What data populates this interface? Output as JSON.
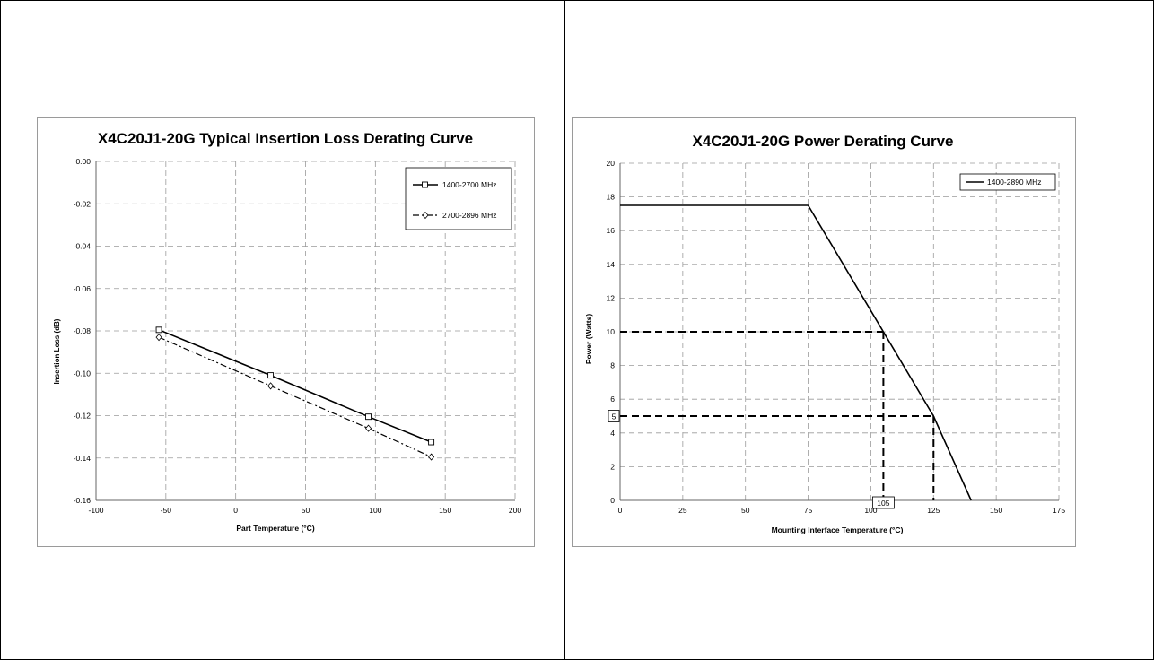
{
  "chart_data": [
    {
      "type": "line",
      "title": "X4C20J1-20G Typical Insertion Loss Derating Curve",
      "xlabel": "Part Temperature (°C)",
      "ylabel": "Insertion Loss (dB)",
      "xlim": [
        -100,
        200
      ],
      "ylim": [
        -0.16,
        0.0
      ],
      "xticks": [
        "-100",
        "-50",
        "0",
        "50",
        "100",
        "150",
        "200"
      ],
      "yticks": [
        "0.00",
        "-0.02",
        "-0.04",
        "-0.06",
        "-0.08",
        "-0.10",
        "-0.12",
        "-0.14",
        "-0.16"
      ],
      "grid": true,
      "legend_position": "top-right",
      "series": [
        {
          "name": "1400-2700 MHz",
          "marker": "square",
          "line": "solid",
          "x": [
            -55,
            25,
            95,
            140
          ],
          "y": [
            -0.0795,
            -0.101,
            -0.1205,
            -0.1325
          ]
        },
        {
          "name": "2700-2896 MHz",
          "marker": "diamond",
          "line": "dashdot",
          "x": [
            -55,
            25,
            95,
            140
          ],
          "y": [
            -0.083,
            -0.106,
            -0.126,
            -0.1395
          ]
        }
      ]
    },
    {
      "type": "line",
      "title": "X4C20J1-20G Power Derating Curve",
      "xlabel": "Mounting Interface Temperature (°C)",
      "ylabel": "Power (Watts)",
      "xlim": [
        0,
        175
      ],
      "ylim": [
        0,
        20
      ],
      "xticks": [
        "0",
        "25",
        "50",
        "75",
        "100",
        "125",
        "150",
        "175"
      ],
      "yticks": [
        "0",
        "2",
        "4",
        "6",
        "8",
        "10",
        "12",
        "14",
        "16",
        "18",
        "20"
      ],
      "grid": true,
      "legend_position": "top-right",
      "series": [
        {
          "name": "1400-2890 MHz",
          "line": "solid",
          "x": [
            0,
            75,
            125,
            140
          ],
          "y": [
            17.5,
            17.5,
            5,
            0
          ]
        }
      ],
      "reference_lines": [
        {
          "from": [
            0,
            10
          ],
          "to": [
            105,
            10
          ]
        },
        {
          "from": [
            105,
            10
          ],
          "to": [
            105,
            0
          ]
        },
        {
          "from": [
            0,
            5
          ],
          "to": [
            125,
            5
          ]
        },
        {
          "from": [
            125,
            5
          ],
          "to": [
            125,
            0
          ]
        }
      ],
      "annotations": [
        {
          "text": "5",
          "x": 0,
          "y": 5
        },
        {
          "text": "105",
          "x": 105,
          "y": 0
        }
      ]
    }
  ]
}
